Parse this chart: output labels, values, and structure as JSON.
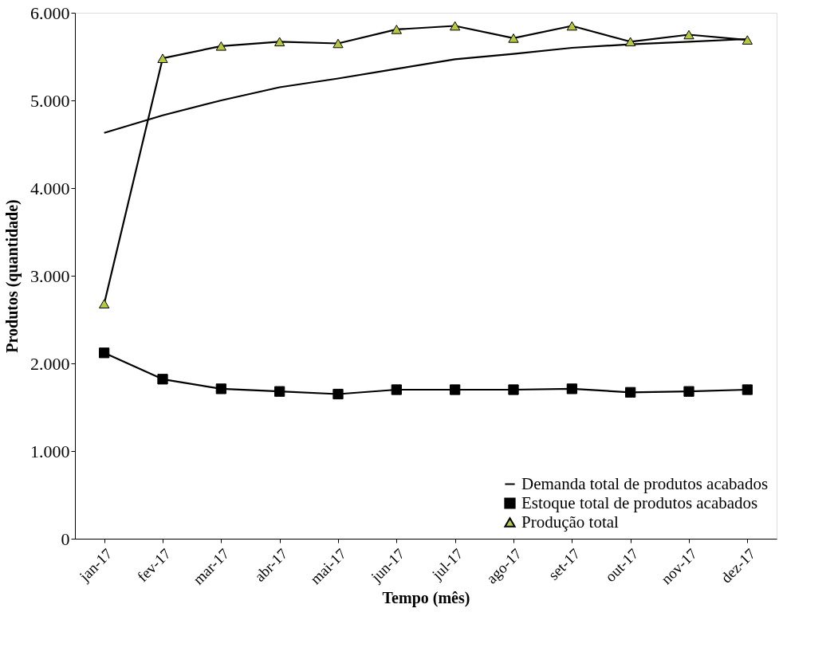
{
  "chart_data": {
    "type": "line",
    "xlabel": "Tempo (mês)",
    "ylabel": "Produtos (quantidade)",
    "categories": [
      "jan-17",
      "fev-17",
      "mar-17",
      "abr-17",
      "mai-17",
      "jun-17",
      "jul-17",
      "ago-17",
      "set-17",
      "out-17",
      "nov-17",
      "dez-17"
    ],
    "series": [
      {
        "name": "Demanda total de produtos acabados",
        "color": "#000000",
        "marker": "none",
        "values": [
          4630,
          4830,
          5000,
          5150,
          5250,
          5360,
          5470,
          5530,
          5600,
          5640,
          5670,
          5700
        ]
      },
      {
        "name": "Estoque total de produtos acabados",
        "color": "#000000",
        "marker": "square",
        "values": [
          2120,
          1820,
          1710,
          1680,
          1650,
          1700,
          1700,
          1700,
          1710,
          1670,
          1680,
          1700
        ]
      },
      {
        "name": "Produção total",
        "color": "#000000",
        "marker": "triangle",
        "values": [
          2680,
          5480,
          5620,
          5670,
          5650,
          5810,
          5850,
          5710,
          5850,
          5670,
          5750,
          5690
        ]
      }
    ],
    "ylim": [
      0,
      6000
    ],
    "yticks": [
      0,
      {
        "value": 1000,
        "label": "1.000"
      },
      {
        "value": 2000,
        "label": "2.000"
      },
      {
        "value": 3000,
        "label": "3.000"
      },
      {
        "value": 4000,
        "label": "4.000"
      },
      {
        "value": 5000,
        "label": "5.000"
      },
      {
        "value": 6000,
        "label": "6.000"
      }
    ],
    "grid": false,
    "legend": "bottom right",
    "line_style": "solid"
  }
}
